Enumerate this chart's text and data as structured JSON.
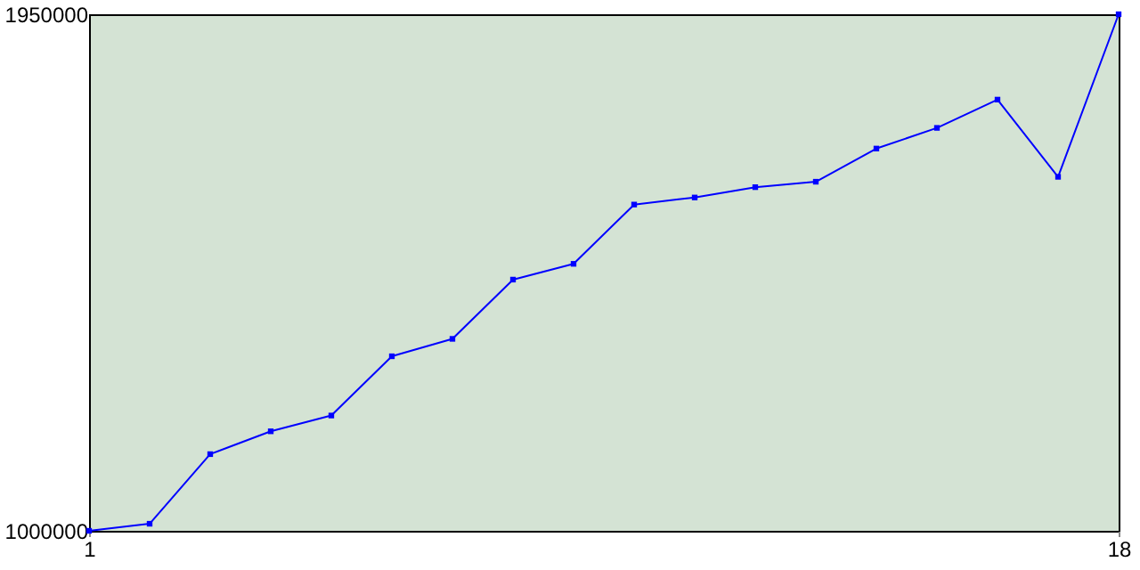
{
  "chart_data": {
    "type": "line",
    "x": [
      1,
      2,
      3,
      4,
      5,
      6,
      7,
      8,
      9,
      10,
      11,
      12,
      13,
      14,
      15,
      16,
      17,
      18
    ],
    "series": [
      {
        "color": "#0000ff",
        "values": [
          1000000,
          1013000,
          1141000,
          1183000,
          1212000,
          1321000,
          1353000,
          1462000,
          1491000,
          1600000,
          1613000,
          1632000,
          1642000,
          1703000,
          1741000,
          1793000,
          1651000,
          1950000
        ]
      }
    ],
    "xlim": [
      1,
      18
    ],
    "xticks": [
      1,
      18
    ],
    "ylim": [
      1000000,
      1950000
    ],
    "yticks": [
      1000000,
      1950000
    ],
    "grid": false,
    "marker": "square",
    "line_style": "solid"
  }
}
